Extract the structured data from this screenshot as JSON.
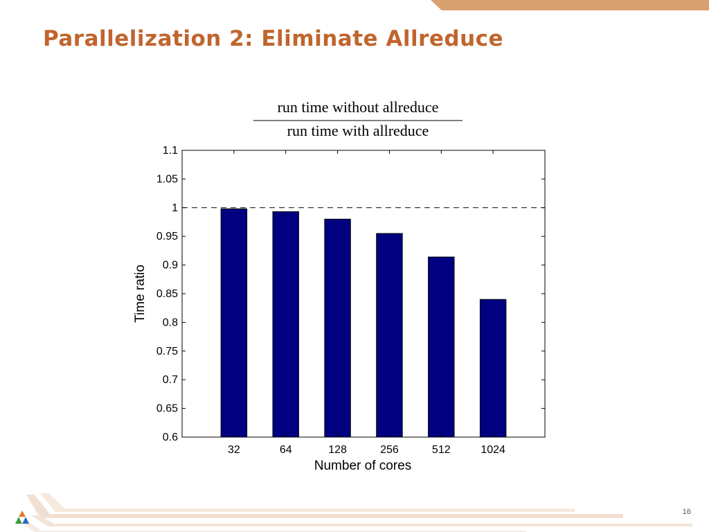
{
  "slide": {
    "title": "Parallelization 2: Eliminate Allreduce",
    "page_number": "16",
    "accent_color": "#c0652e",
    "band_color": "#d9a070"
  },
  "logo": {
    "icon": "triangle-logo-icon"
  },
  "chart_data": {
    "type": "bar",
    "title": {
      "numerator": "run time without allreduce",
      "denominator": "run time with allreduce"
    },
    "xlabel": "Number of cores",
    "ylabel": "Time ratio",
    "categories": [
      "32",
      "64",
      "128",
      "256",
      "512",
      "1024"
    ],
    "values": [
      0.998,
      0.993,
      0.98,
      0.955,
      0.914,
      0.84
    ],
    "ylim": [
      0.6,
      1.1
    ],
    "yticks": [
      0.6,
      0.65,
      0.7,
      0.75,
      0.8,
      0.85,
      0.9,
      0.95,
      1,
      1.05,
      1.1
    ],
    "ytick_labels": [
      "0.6",
      "0.65",
      "0.7",
      "0.75",
      "0.8",
      "0.85",
      "0.9",
      "0.95",
      "1",
      "1.05",
      "1.1"
    ],
    "reference_line": {
      "y": 1,
      "style": "dashed"
    },
    "bar_color": "#000080",
    "grid": false,
    "legend": "none"
  }
}
